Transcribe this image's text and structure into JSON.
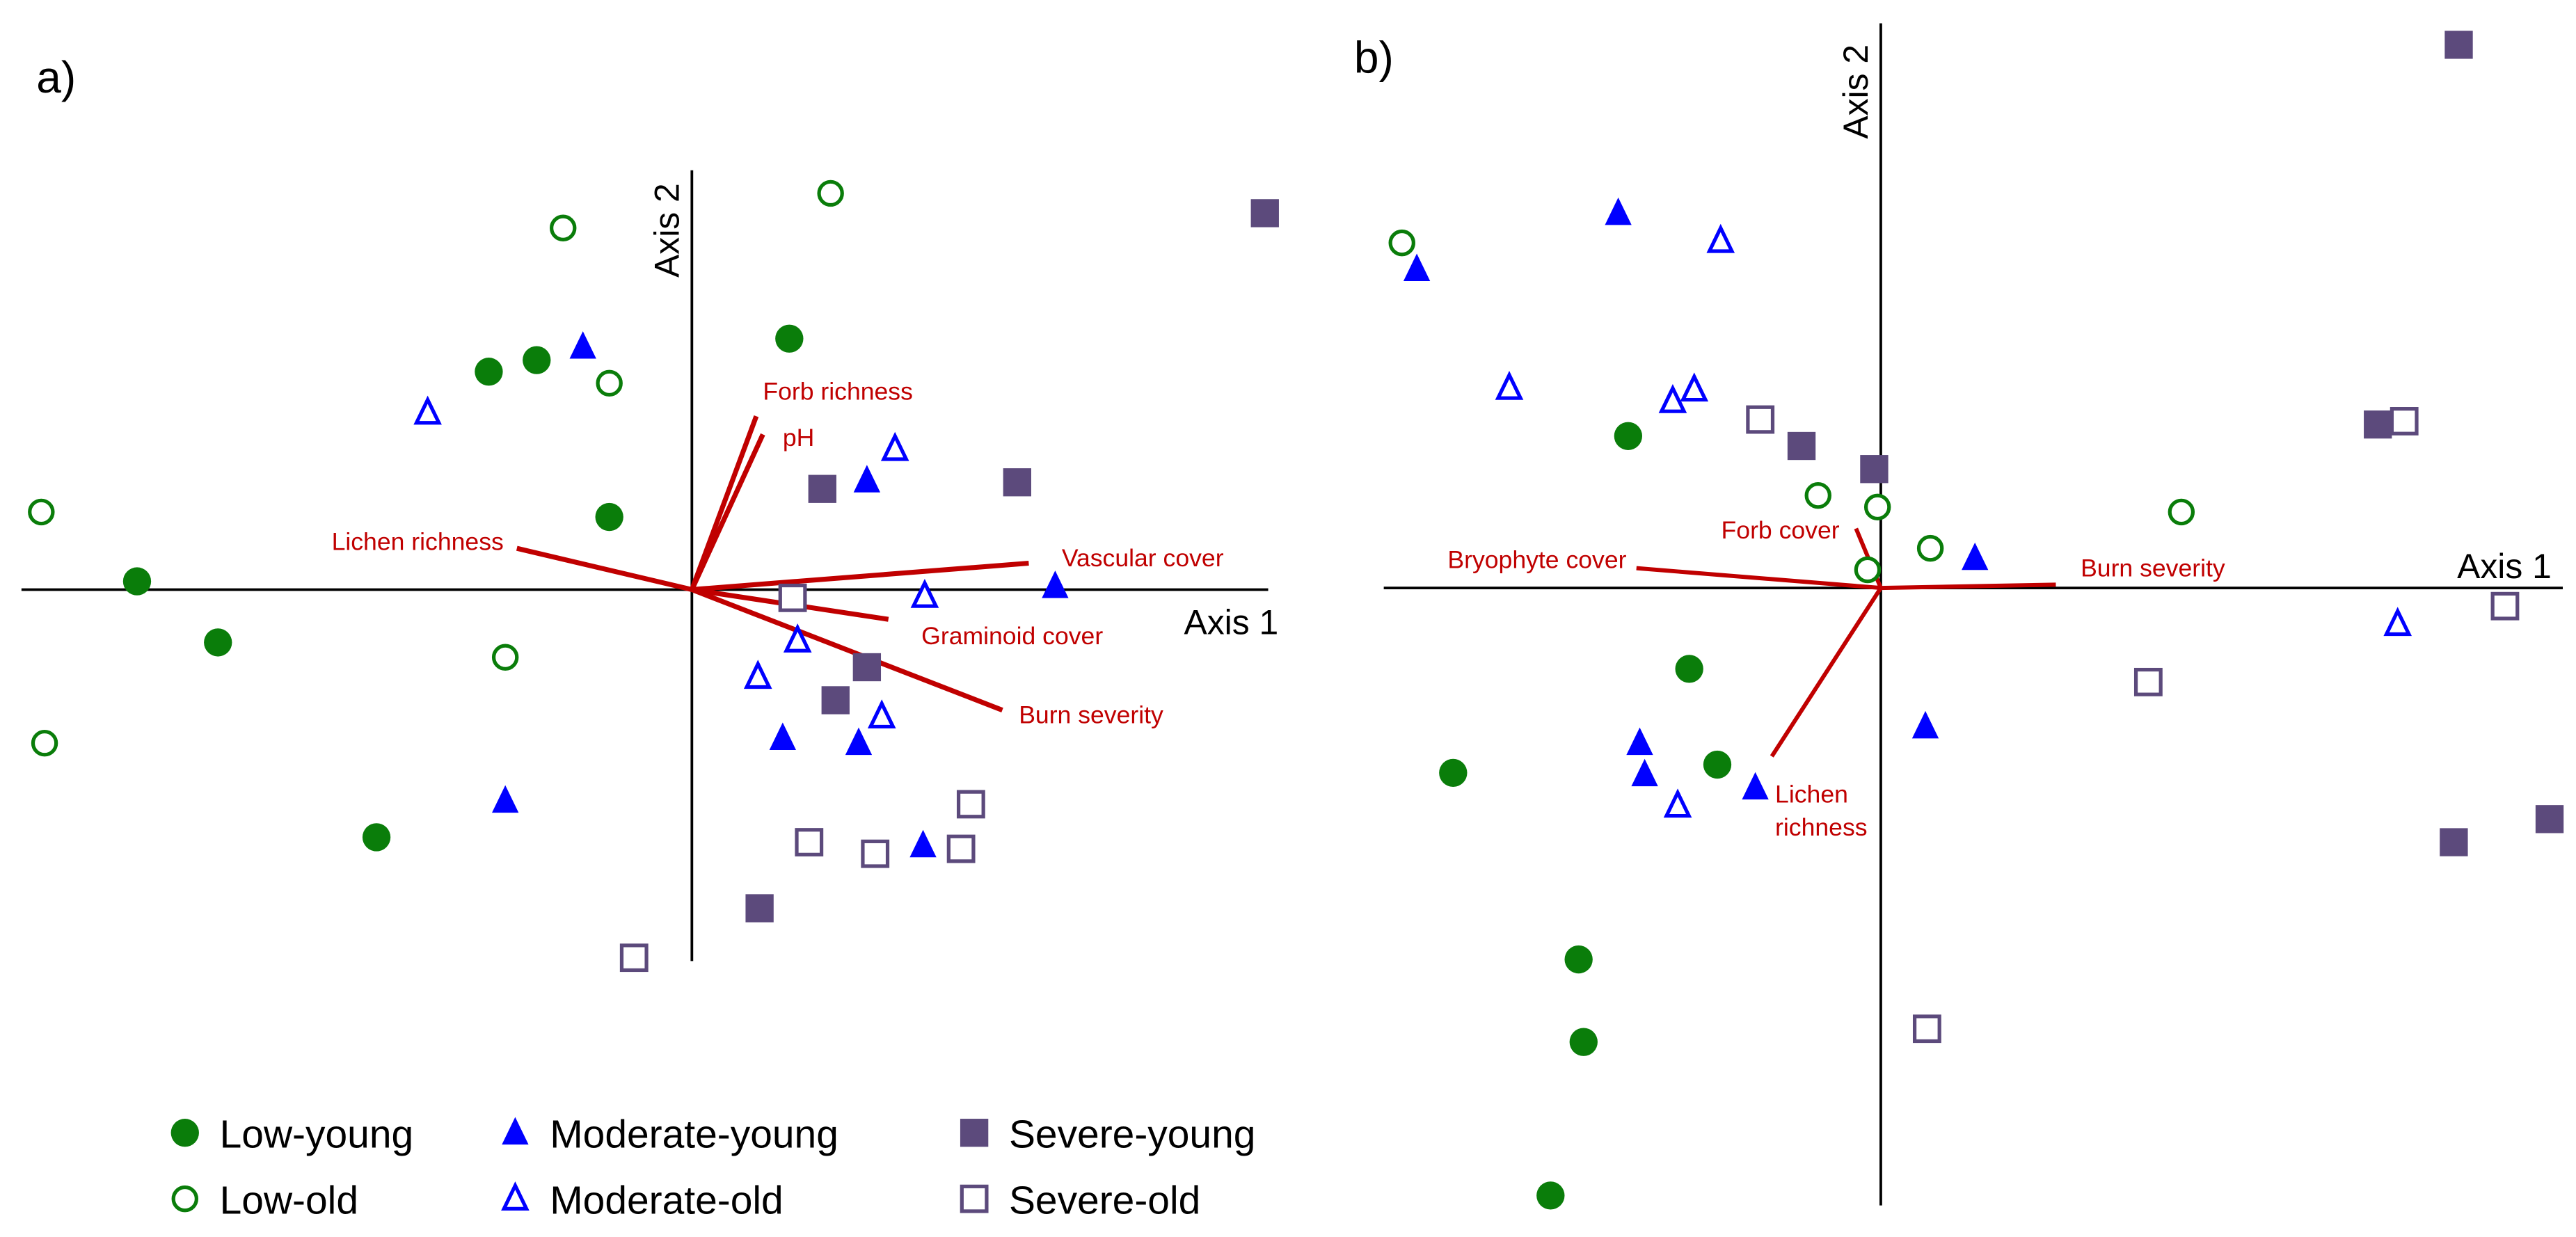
{
  "colors": {
    "low": "#0a7d0a",
    "moderate": "#0000ff",
    "severe": "#5c4a7c",
    "vector": "#c00000"
  },
  "legend": [
    {
      "name": "Low-young",
      "shape": "circle",
      "filled": true,
      "color": "#0a7d0a"
    },
    {
      "name": "Low-old",
      "shape": "circle",
      "filled": false,
      "color": "#0a7d0a"
    },
    {
      "name": "Moderate-young",
      "shape": "triangle",
      "filled": true,
      "color": "#0000ff"
    },
    {
      "name": "Moderate-old",
      "shape": "triangle",
      "filled": false,
      "color": "#0000ff"
    },
    {
      "name": "Severe-young",
      "shape": "square",
      "filled": true,
      "color": "#5c4a7c"
    },
    {
      "name": "Severe-old",
      "shape": "square",
      "filled": false,
      "color": "#5c4a7c"
    }
  ],
  "chart_data": [
    {
      "type": "scatter",
      "panel_label": "a)",
      "xlabel": "Axis 1",
      "ylabel": "Axis 2",
      "series": [
        {
          "name": "Low-young",
          "points": [
            [
              -3.36,
              0.05
            ],
            [
              -2.87,
              -0.32
            ],
            [
              -1.91,
              -1.5
            ],
            [
              -1.23,
              1.32
            ],
            [
              -0.94,
              1.39
            ],
            [
              -0.5,
              0.44
            ],
            [
              0.59,
              1.52
            ]
          ]
        },
        {
          "name": "Low-old",
          "points": [
            [
              -3.94,
              0.47
            ],
            [
              -3.92,
              -0.93
            ],
            [
              -1.13,
              -0.41
            ],
            [
              -0.78,
              2.19
            ],
            [
              -0.5,
              1.25
            ],
            [
              0.84,
              2.4
            ]
          ]
        },
        {
          "name": "Moderate-young",
          "points": [
            [
              -0.66,
              1.47
            ],
            [
              -1.13,
              -1.28
            ],
            [
              1.06,
              0.66
            ],
            [
              2.2,
              0.02
            ],
            [
              0.55,
              -0.9
            ],
            [
              1.01,
              -0.93
            ],
            [
              1.4,
              -1.55
            ]
          ]
        },
        {
          "name": "Moderate-old",
          "points": [
            [
              -1.6,
              1.07
            ],
            [
              1.23,
              0.85
            ],
            [
              1.41,
              -0.04
            ],
            [
              0.64,
              -0.31
            ],
            [
              0.4,
              -0.53
            ],
            [
              1.15,
              -0.77
            ]
          ]
        },
        {
          "name": "Severe-young",
          "points": [
            [
              0.79,
              0.61
            ],
            [
              1.97,
              0.65
            ],
            [
              1.06,
              -0.47
            ],
            [
              0.87,
              -0.67
            ],
            [
              0.41,
              -1.93
            ],
            [
              3.47,
              2.28
            ]
          ]
        },
        {
          "name": "Severe-old",
          "points": [
            [
              0.61,
              -0.05
            ],
            [
              -0.35,
              -2.23
            ],
            [
              0.71,
              -1.53
            ],
            [
              1.11,
              -1.6
            ],
            [
              1.69,
              -1.3
            ],
            [
              1.63,
              -1.57
            ]
          ]
        }
      ],
      "vectors": [
        {
          "label": "Forb richness",
          "end": [
            0.39,
            1.05
          ]
        },
        {
          "label": "pH",
          "end": [
            0.43,
            0.94
          ]
        },
        {
          "label": "Lichen richness",
          "end": [
            -1.06,
            0.25
          ]
        },
        {
          "label": "Vascular cover",
          "end": [
            2.04,
            0.16
          ]
        },
        {
          "label": "Graminoid cover",
          "end": [
            1.19,
            -0.18
          ]
        },
        {
          "label": "Burn severity",
          "end": [
            1.88,
            -0.73
          ]
        }
      ]
    },
    {
      "type": "scatter",
      "panel_label": "b)",
      "xlabel": "Axis 1",
      "ylabel": "Axis 2",
      "series": [
        {
          "name": "Low-young",
          "points": [
            [
              -1.53,
              0.92
            ],
            [
              -1.16,
              -0.49
            ],
            [
              -2.59,
              -1.12
            ],
            [
              -0.99,
              -1.07
            ],
            [
              -1.83,
              -2.25
            ],
            [
              -1.8,
              -2.75
            ],
            [
              -2.0,
              -3.68
            ]
          ]
        },
        {
          "name": "Low-old",
          "points": [
            [
              -2.9,
              2.09
            ],
            [
              -0.38,
              0.56
            ],
            [
              -0.02,
              0.49
            ],
            [
              0.3,
              0.24
            ],
            [
              -0.08,
              0.11
            ],
            [
              1.82,
              0.46
            ]
          ]
        },
        {
          "name": "Moderate-young",
          "points": [
            [
              -1.59,
              2.27
            ],
            [
              -2.81,
              1.93
            ],
            [
              0.57,
              0.18
            ],
            [
              0.27,
              -0.84
            ],
            [
              -1.46,
              -0.94
            ],
            [
              -1.43,
              -1.13
            ],
            [
              -0.76,
              -1.21
            ]
          ]
        },
        {
          "name": "Moderate-old",
          "points": [
            [
              -0.97,
              2.1
            ],
            [
              -2.25,
              1.21
            ],
            [
              -1.26,
              1.13
            ],
            [
              -1.13,
              1.2
            ],
            [
              -1.23,
              -1.32
            ],
            [
              3.13,
              -0.22
            ]
          ]
        },
        {
          "name": "Severe-young",
          "points": [
            [
              3.5,
              3.29
            ],
            [
              -0.48,
              0.86
            ],
            [
              -0.04,
              0.72
            ],
            [
              3.01,
              0.99
            ],
            [
              3.47,
              -1.54
            ],
            [
              4.05,
              -1.4
            ]
          ]
        },
        {
          "name": "Severe-old",
          "points": [
            [
              -0.73,
              1.02
            ],
            [
              3.17,
              1.01
            ],
            [
              3.78,
              -0.11
            ],
            [
              1.62,
              -0.57
            ],
            [
              0.28,
              -2.67
            ]
          ]
        }
      ],
      "vectors": [
        {
          "label": "Bryophyte cover",
          "end": [
            -1.48,
            0.12
          ]
        },
        {
          "label": "Forb cover",
          "end": [
            -0.15,
            0.36
          ]
        },
        {
          "label": "Burn severity",
          "end": [
            1.06,
            0.02
          ]
        },
        {
          "label": "Lichen richness",
          "end": [
            -0.66,
            -1.02
          ]
        }
      ]
    }
  ]
}
